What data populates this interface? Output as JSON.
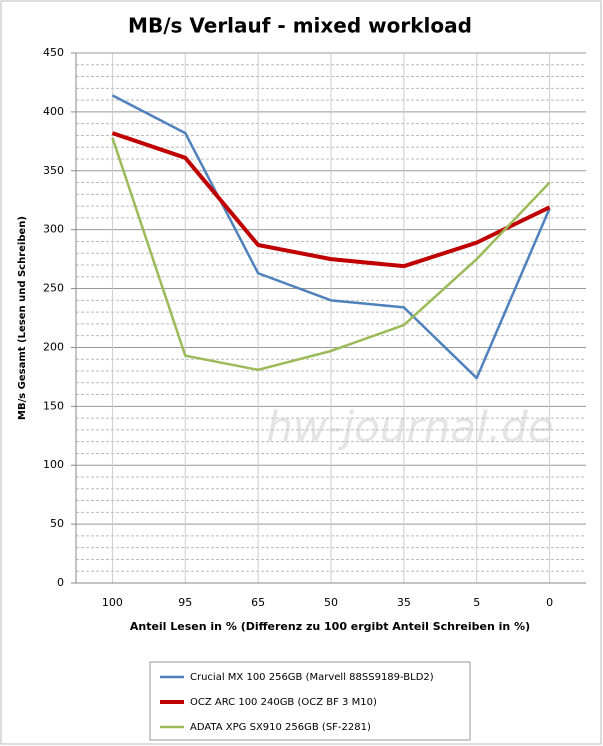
{
  "chart_data": {
    "type": "line",
    "title": "MB/s Verlauf - mixed workload",
    "x_label": "Anteil Lesen in % (Differenz zu 100 ergibt Anteil Schreiben in %)",
    "y_label": "MB/s Gesamt  (Lesen und Schreiben)",
    "watermark": "hw-journal.de",
    "categories": [
      "100",
      "95",
      "65",
      "50",
      "35",
      "5",
      "0"
    ],
    "series": [
      {
        "name": "Crucial MX 100 256GB (Marvell 88SS9189-BLD2)",
        "color": "#4f81bd",
        "width": 2.5,
        "values": [
          414,
          382,
          263,
          240,
          234,
          174,
          318
        ]
      },
      {
        "name": "OCZ ARC 100 240GB (OCZ BF 3 M10)",
        "color": "#c00000",
        "width": 4,
        "values": [
          382,
          361,
          287,
          275,
          269,
          289,
          319
        ]
      },
      {
        "name": "ADATA XPG SX910 256GB (SF-2281)",
        "color": "#9bbb59",
        "width": 2.5,
        "values": [
          378,
          193,
          181,
          197,
          219,
          275,
          340
        ]
      }
    ],
    "ylim": [
      0,
      450
    ],
    "yticks": [
      0,
      50,
      100,
      150,
      200,
      250,
      300,
      350,
      400,
      450
    ],
    "grid": true,
    "minor_grid": true,
    "legend": "bottom"
  }
}
